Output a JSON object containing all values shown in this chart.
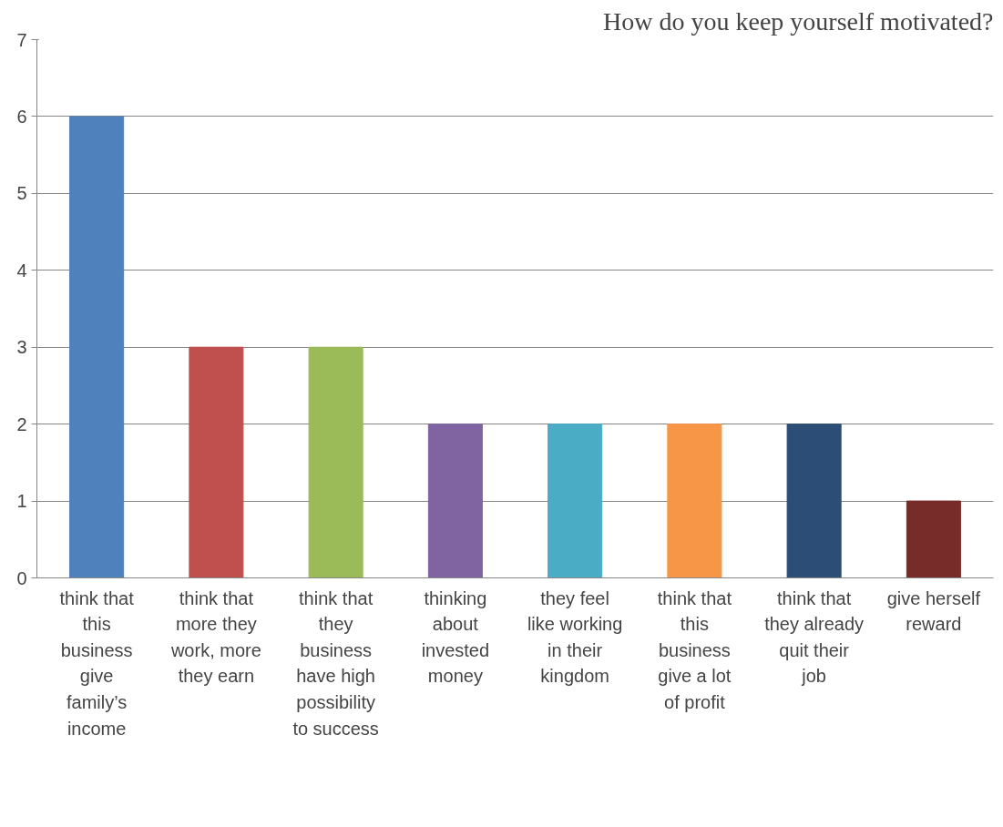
{
  "chart_data": {
    "type": "bar",
    "title": "How do you keep yourself motivated?",
    "categories": [
      "think that this business give family’s income",
      "think that more they work, more they earn",
      "think that they business have high possibility to success",
      "thinking about invested money",
      "they feel like working in their kingdom",
      "think that this business give a lot of profit",
      "think that they already quit their job",
      "give herself reward"
    ],
    "values": [
      6,
      3,
      3,
      2,
      2,
      2,
      2,
      1
    ],
    "colors": [
      "#4f81bd",
      "#c0504d",
      "#9bbb59",
      "#8064a2",
      "#4bacc6",
      "#f79646",
      "#2c4d75",
      "#772c2a"
    ],
    "ylim": [
      0,
      7
    ],
    "yticks": [
      0,
      1,
      2,
      3,
      4,
      5,
      6,
      7
    ],
    "grid": "y"
  }
}
